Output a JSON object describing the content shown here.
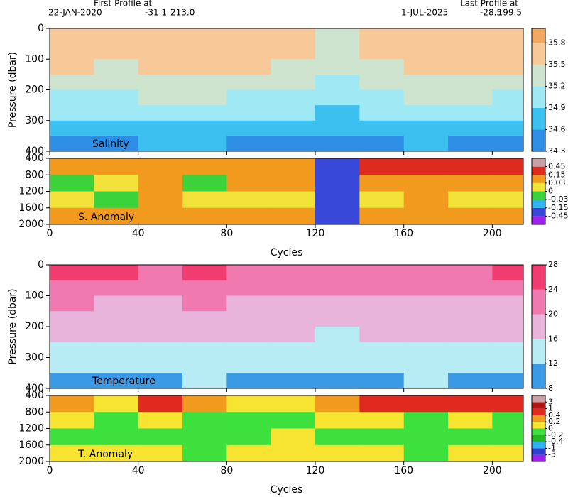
{
  "header": {
    "first_label": "First Profile at",
    "first_date": "22-JAN-2020",
    "first_lat": "-31.1",
    "first_lon": "213.0",
    "last_label": "Last Profile at",
    "last_date": "1-JUL-2025",
    "last_lat": "-28.5",
    "last_lon": "199.5"
  },
  "chart_data": [
    {
      "type": "heatmap",
      "title": "Salinity",
      "ylabel": "Pressure (dbar)",
      "xlim": [
        0,
        214
      ],
      "xticks": [
        0,
        40,
        80,
        120,
        160,
        200
      ],
      "ylim": [
        400,
        0
      ],
      "yticks": [
        0,
        100,
        200,
        300,
        400
      ],
      "x": [
        10,
        30,
        50,
        70,
        90,
        110,
        130,
        150,
        170,
        190,
        210
      ],
      "y": [
        25,
        75,
        125,
        175,
        225,
        275,
        325,
        375
      ],
      "z": [
        [
          35.7,
          35.65,
          35.6,
          35.7,
          35.65,
          35.6,
          35.3,
          35.6,
          35.65,
          35.6,
          35.7
        ],
        [
          35.6,
          35.6,
          35.55,
          35.6,
          35.6,
          35.55,
          35.25,
          35.55,
          35.6,
          35.55,
          35.6
        ],
        [
          35.5,
          35.45,
          35.5,
          35.5,
          35.5,
          35.45,
          35.2,
          35.45,
          35.5,
          35.5,
          35.5
        ],
        [
          35.35,
          35.3,
          35.35,
          35.4,
          35.35,
          35.3,
          35.1,
          35.3,
          35.35,
          35.4,
          35.35
        ],
        [
          35.15,
          35.1,
          35.2,
          35.2,
          35.15,
          35.1,
          35.0,
          35.1,
          35.2,
          35.2,
          35.15
        ],
        [
          34.95,
          34.9,
          35.0,
          35.0,
          34.95,
          34.9,
          34.85,
          34.9,
          35.0,
          34.95,
          34.95
        ],
        [
          34.75,
          34.7,
          34.8,
          34.8,
          34.75,
          34.75,
          34.7,
          34.75,
          34.8,
          34.75,
          34.75
        ],
        [
          34.55,
          34.5,
          34.6,
          34.6,
          34.55,
          34.55,
          34.5,
          34.55,
          34.6,
          34.55,
          34.55
        ]
      ],
      "clim": [
        34.3,
        36.0
      ],
      "cticks": [
        34.3,
        34.6,
        34.9,
        35.2,
        35.5,
        35.8
      ],
      "colors": [
        "#2e8ee6",
        "#3cc0f0",
        "#9ee9f4",
        "#cfe4cf",
        "#f7c898",
        "#f3a860"
      ]
    },
    {
      "type": "heatmap",
      "title": "S. Anomaly",
      "xlim": [
        0,
        214
      ],
      "xticks": [
        0,
        40,
        80,
        120,
        160,
        200
      ],
      "ylim": [
        2000,
        400
      ],
      "yticks": [
        400,
        800,
        1200,
        1600,
        2000
      ],
      "x": [
        10,
        30,
        50,
        70,
        90,
        110,
        130,
        150,
        170,
        190,
        210
      ],
      "y": [
        600,
        1000,
        1400,
        1800
      ],
      "z": [
        [
          0.1,
          0.05,
          0.04,
          0.1,
          0.05,
          0.04,
          -0.3,
          0.2,
          0.2,
          0.2,
          0.2
        ],
        [
          -0.02,
          0.02,
          0.04,
          -0.02,
          0.04,
          0.04,
          -0.3,
          0.1,
          0.04,
          0.1,
          0.04
        ],
        [
          0.02,
          -0.02,
          0.04,
          0.02,
          0.02,
          0.02,
          -0.3,
          0.02,
          0.04,
          0.02,
          0.02
        ],
        [
          0.04,
          0.04,
          0.04,
          0.04,
          0.04,
          0.04,
          -0.3,
          0.04,
          0.04,
          0.04,
          0.04
        ]
      ],
      "cticks": [
        -0.45,
        -0.15,
        -0.03,
        0,
        0.03,
        0.15,
        0.45
      ],
      "colors": [
        "#a020f0",
        "#3848d8",
        "#2fb4ee",
        "#3cd23c",
        "#f2e23a",
        "#f29a1e",
        "#e02a20",
        "#c8a0a8"
      ],
      "xlabel": "Cycles"
    },
    {
      "type": "heatmap",
      "title": "Temperature",
      "ylabel": "Pressure (dbar)",
      "xlim": [
        0,
        214
      ],
      "xticks": [
        0,
        40,
        80,
        120,
        160,
        200
      ],
      "ylim": [
        400,
        0
      ],
      "yticks": [
        0,
        100,
        200,
        300,
        400
      ],
      "x": [
        10,
        30,
        50,
        70,
        90,
        110,
        130,
        150,
        170,
        190,
        210
      ],
      "y": [
        25,
        75,
        125,
        175,
        225,
        275,
        325,
        375
      ],
      "z": [
        [
          25,
          24.5,
          22,
          25,
          23,
          22,
          21,
          23,
          22,
          21,
          24
        ],
        [
          22,
          21.5,
          21,
          22,
          21.5,
          21,
          20,
          21,
          21,
          20.5,
          21.5
        ],
        [
          20,
          19.5,
          19,
          20,
          19.5,
          19.5,
          18.5,
          19.5,
          19.5,
          19,
          19.5
        ],
        [
          18.5,
          18,
          17.5,
          18.5,
          18,
          18,
          17,
          18,
          18,
          17.5,
          18
        ],
        [
          17,
          16.5,
          16,
          17,
          16.5,
          16.5,
          15.5,
          16.5,
          16.5,
          16,
          16.5
        ],
        [
          15,
          14.5,
          14.5,
          15,
          15,
          15,
          14,
          15,
          15,
          14.5,
          15
        ],
        [
          13.5,
          13,
          13,
          13.5,
          13.5,
          13.5,
          12.5,
          13.5,
          13.5,
          13,
          13.5
        ],
        [
          11.5,
          11.5,
          11.5,
          12,
          11.5,
          11.5,
          11,
          11.5,
          12,
          11.5,
          11.5
        ]
      ],
      "clim": [
        8,
        28
      ],
      "cticks": [
        8,
        12,
        16,
        20,
        24,
        28
      ],
      "colors": [
        "#3a9ae6",
        "#b8ecf5",
        "#e8b4dc",
        "#f07ab0",
        "#f03c70"
      ]
    },
    {
      "type": "heatmap",
      "title": "T. Anomaly",
      "xlim": [
        0,
        214
      ],
      "xticks": [
        0,
        40,
        80,
        120,
        160,
        200
      ],
      "ylim": [
        2000,
        400
      ],
      "yticks": [
        400,
        800,
        1200,
        1600,
        2000
      ],
      "x": [
        10,
        30,
        50,
        70,
        90,
        110,
        130,
        150,
        170,
        190,
        210
      ],
      "y": [
        600,
        1000,
        1400,
        1800
      ],
      "z": [
        [
          0.3,
          0.1,
          0.5,
          0.3,
          0.1,
          0.1,
          0.3,
          0.5,
          0.5,
          0.5,
          0.5
        ],
        [
          0.1,
          -0.1,
          0.1,
          -0.1,
          -0.1,
          -0.1,
          0.1,
          0.1,
          -0.1,
          0.1,
          -0.1
        ],
        [
          -0.1,
          -0.1,
          -0.1,
          -0.1,
          -0.1,
          0.1,
          -0.1,
          -0.1,
          -0.1,
          -0.1,
          -0.1
        ],
        [
          0.1,
          0.1,
          0.1,
          -0.1,
          0.1,
          0.1,
          0.1,
          0.1,
          -0.1,
          0.1,
          0.1
        ]
      ],
      "cticks": [
        -3,
        -1,
        -0.4,
        -0.2,
        0,
        0.2,
        0.4,
        1,
        3
      ],
      "colors": [
        "#a020f0",
        "#3040d0",
        "#30b0f0",
        "#22b822",
        "#3ee03e",
        "#f6e430",
        "#f29a1e",
        "#e02a20",
        "#b01818",
        "#c8a0a8"
      ],
      "xlabel": "Cycles"
    }
  ]
}
